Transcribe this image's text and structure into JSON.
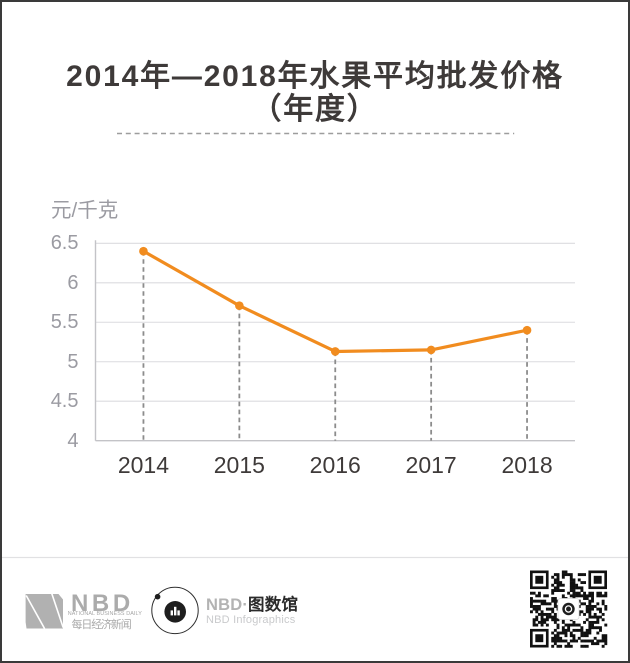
{
  "page": {
    "background": "#ffffff",
    "frame_border_color": "#3a3a3a"
  },
  "header": {
    "title_line1": "2014年—2018年水果平均批发价格",
    "title_line2": "（年度）"
  },
  "chart_data": {
    "type": "line",
    "title": "2014年—2018年水果平均批发价格（年度）",
    "ylabel": "元/千克",
    "categories": [
      "2014",
      "2015",
      "2016",
      "2017",
      "2018"
    ],
    "values": [
      6.4,
      5.71,
      5.13,
      5.15,
      5.4
    ],
    "ylim": [
      4,
      6.5
    ],
    "yticks": [
      6.5,
      6,
      5.5,
      5,
      4.5,
      4
    ],
    "ytick_labels": [
      "6.5",
      "6",
      "5.5",
      "5",
      "4.5",
      "4"
    ],
    "grid": true,
    "legend": false,
    "line_color": "#f18c1f",
    "marker": "circle",
    "drop_lines": "dashed"
  },
  "footer": {
    "nbd_logo": {
      "wordmark": "NBD",
      "subtitle": "NATIONAL BUSINESS DAILY",
      "chinese": "每日经济新闻"
    },
    "infographics_logo": {
      "prefix": "NBD·",
      "name": "图数馆",
      "subtitle": "NBD Infographics"
    }
  },
  "icons": {
    "nbd_n_mark": "nbd-n-logo-icon",
    "orbit_globe": "orbit-planet-icon",
    "qr": "qr-code-icon"
  },
  "colors": {
    "accent_orange": "#f18c1f",
    "title_text": "#3e3a39",
    "axis_text": "#9b9ba2",
    "gridline": "#dcdcdf",
    "axis_line": "#c3c3c7",
    "logo_gray": "#ababab"
  }
}
